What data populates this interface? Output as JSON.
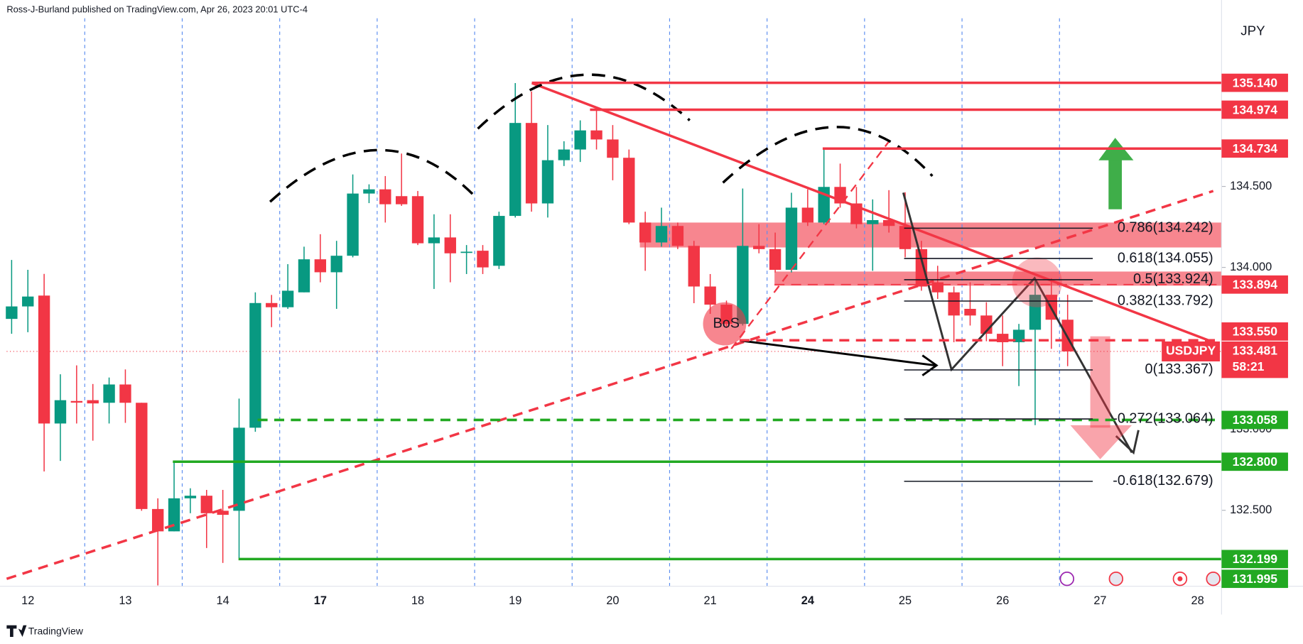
{
  "header": "Ross-J-Burland published on TradingView.com, Apr 26, 2023 20:01 UTC-4",
  "footer": "TradingView",
  "chart_data": {
    "type": "candlestick",
    "symbol": "USDJPY",
    "currency": "JPY",
    "countdown": "58:21",
    "annotation": "BoS",
    "up_color": "#089981",
    "down_color": "#f23645",
    "categories": [
      null,
      "12",
      null,
      null,
      null,
      null,
      null,
      "13",
      null,
      null,
      null,
      null,
      null,
      "14",
      null,
      null,
      null,
      null,
      null,
      "17",
      null,
      null,
      null,
      null,
      null,
      "18",
      null,
      null,
      null,
      null,
      null,
      "19",
      null,
      null,
      null,
      null,
      null,
      "20",
      null,
      null,
      null,
      null,
      null,
      "21",
      null,
      null,
      null,
      null,
      null,
      "24",
      null,
      null,
      null,
      null,
      null,
      "25",
      null,
      null,
      null,
      null,
      null,
      "26",
      null,
      null,
      null,
      null,
      null,
      "27",
      null,
      null,
      null,
      null,
      null,
      "28",
      null
    ],
    "open": [
      133.682,
      133.759,
      133.826,
      133.036,
      133.175,
      133.18,
      133.164,
      133.277,
      133.164,
      132.508,
      132.37,
      132.574,
      132.59,
      132.497,
      132.497,
      133.01,
      133.78,
      133.754,
      133.846,
      134.05,
      133.97,
      134.072,
      134.456,
      134.482,
      134.44,
      134.44,
      134.149,
      134.185,
      134.09,
      134.103,
      134.01,
      134.318,
      134.892,
      134.395,
      134.662,
      134.728,
      134.846,
      134.79,
      134.677,
      134.277,
      134.154,
      134.256,
      134.133,
      133.882,
      133.77,
      133.651,
      134.133,
      134.113,
      133.985,
      134.369,
      134.277,
      134.497,
      134.395,
      134.267,
      134.292,
      134.256,
      134.113,
      133.908,
      133.846,
      133.744,
      133.703,
      133.59,
      133.538,
      133.615,
      133.831,
      133.677,
      null,
      null,
      null,
      null,
      null,
      null,
      null,
      null,
      null
    ],
    "high": [
      134.046,
      133.985,
      133.96,
      133.34,
      133.395,
      133.28,
      133.32,
      133.37,
      133.164,
      132.574,
      132.805,
      132.636,
      132.626,
      132.626,
      133.19,
      133.846,
      133.83,
      134.02,
      134.128,
      134.205,
      134.164,
      134.574,
      134.513,
      134.564,
      134.703,
      134.472,
      134.328,
      134.328,
      134.138,
      134.138,
      134.344,
      135.138,
      135.087,
      134.879,
      134.779,
      134.908,
      134.985,
      134.879,
      134.728,
      134.344,
      134.369,
      134.277,
      134.164,
      133.959,
      133.795,
      134.487,
      134.267,
      134.215,
      134.461,
      134.482,
      134.738,
      134.641,
      134.497,
      134.42,
      134.477,
      134.464,
      134.164,
      134.01,
      133.882,
      133.908,
      133.785,
      133.703,
      133.651,
      133.933,
      133.933,
      133.831,
      null,
      null,
      null,
      null,
      null,
      null,
      null,
      null,
      null
    ],
    "low": [
      133.59,
      133.6,
      132.74,
      132.805,
      133.036,
      132.93,
      133.036,
      133.04,
      132.497,
      132.036,
      132.37,
      132.482,
      132.267,
      132.175,
      132.205,
      132.985,
      133.631,
      133.744,
      133.846,
      133.908,
      133.744,
      134.062,
      134.397,
      134.277,
      134.38,
      134.138,
      133.867,
      133.908,
      133.959,
      133.959,
      133.99,
      134.308,
      134.344,
      134.308,
      134.626,
      134.651,
      134.728,
      134.538,
      134.267,
      133.979,
      134.128,
      134.113,
      133.779,
      133.713,
      133.626,
      133.641,
      134.087,
      133.969,
      133.969,
      134.256,
      134.267,
      134.369,
      134.241,
      133.979,
      134.215,
      134.062,
      133.856,
      133.805,
      133.538,
      133.641,
      133.544,
      133.39,
      133.267,
      133.026,
      133.497,
      133.39,
      null,
      null,
      null,
      null,
      null,
      null,
      null,
      null,
      null
    ],
    "close": [
      133.759,
      133.82,
      133.036,
      133.18,
      133.165,
      133.16,
      133.277,
      133.164,
      132.508,
      132.37,
      132.574,
      132.59,
      132.482,
      132.472,
      133.01,
      133.78,
      133.754,
      133.856,
      134.05,
      133.97,
      134.072,
      134.456,
      134.482,
      134.39,
      134.39,
      134.149,
      134.185,
      134.087,
      134.097,
      134.0,
      134.318,
      134.892,
      134.395,
      134.662,
      134.728,
      134.846,
      134.79,
      134.677,
      134.277,
      134.154,
      134.256,
      134.133,
      133.882,
      133.77,
      133.651,
      134.133,
      134.113,
      133.985,
      134.369,
      134.277,
      134.497,
      134.395,
      134.267,
      134.292,
      134.256,
      134.113,
      133.882,
      133.846,
      133.703,
      133.703,
      133.59,
      133.538,
      133.615,
      133.831,
      133.677,
      133.481,
      null,
      null,
      null,
      null,
      null,
      null,
      null,
      null,
      null
    ],
    "last_price": {
      "value": 133.481,
      "label": "133.481"
    },
    "ylim": [
      132.04,
      135.65
    ],
    "yticks": [
      {
        "value": 132.5,
        "label": "132.500"
      },
      {
        "value": 133.0,
        "label": "133.000"
      },
      {
        "value": 134.0,
        "label": "134.000"
      },
      {
        "value": 134.5,
        "label": "134.500"
      }
    ],
    "price_levels": [
      {
        "value": 135.14,
        "label": "135.140",
        "color": "#f23645",
        "line": "solid"
      },
      {
        "value": 134.974,
        "label": "134.974",
        "color": "#f23645",
        "line": "solid"
      },
      {
        "value": 134.734,
        "label": "134.734",
        "color": "#f23645",
        "line": "solid"
      },
      {
        "value": 133.894,
        "label": "133.894",
        "color": "#f23645",
        "line": "dashed"
      },
      {
        "value": 133.55,
        "label": "133.550",
        "color": "#f23645",
        "line": "dashed"
      },
      {
        "value": 133.058,
        "label": "133.058",
        "color": "#22a922",
        "line": "dashed"
      },
      {
        "value": 132.8,
        "label": "132.800",
        "color": "#22a922",
        "line": "solid"
      },
      {
        "value": 132.199,
        "label": "132.199",
        "color": "#22a922",
        "line": "solid"
      },
      {
        "value": 131.995,
        "label": "131.995",
        "color": "#22a922",
        "line": "none"
      }
    ],
    "fib_levels": [
      {
        "value": 134.242,
        "label": "0.786(134.242)"
      },
      {
        "value": 134.055,
        "label": "0.618(134.055)"
      },
      {
        "value": 133.924,
        "label": "0.5(133.924)"
      },
      {
        "value": 133.792,
        "label": "0.382(133.792)"
      },
      {
        "value": 133.367,
        "label": "0(133.367)"
      },
      {
        "value": 133.064,
        "label": "-0.272(133.064)"
      },
      {
        "value": 132.679,
        "label": "-0.618(132.679)"
      }
    ]
  }
}
